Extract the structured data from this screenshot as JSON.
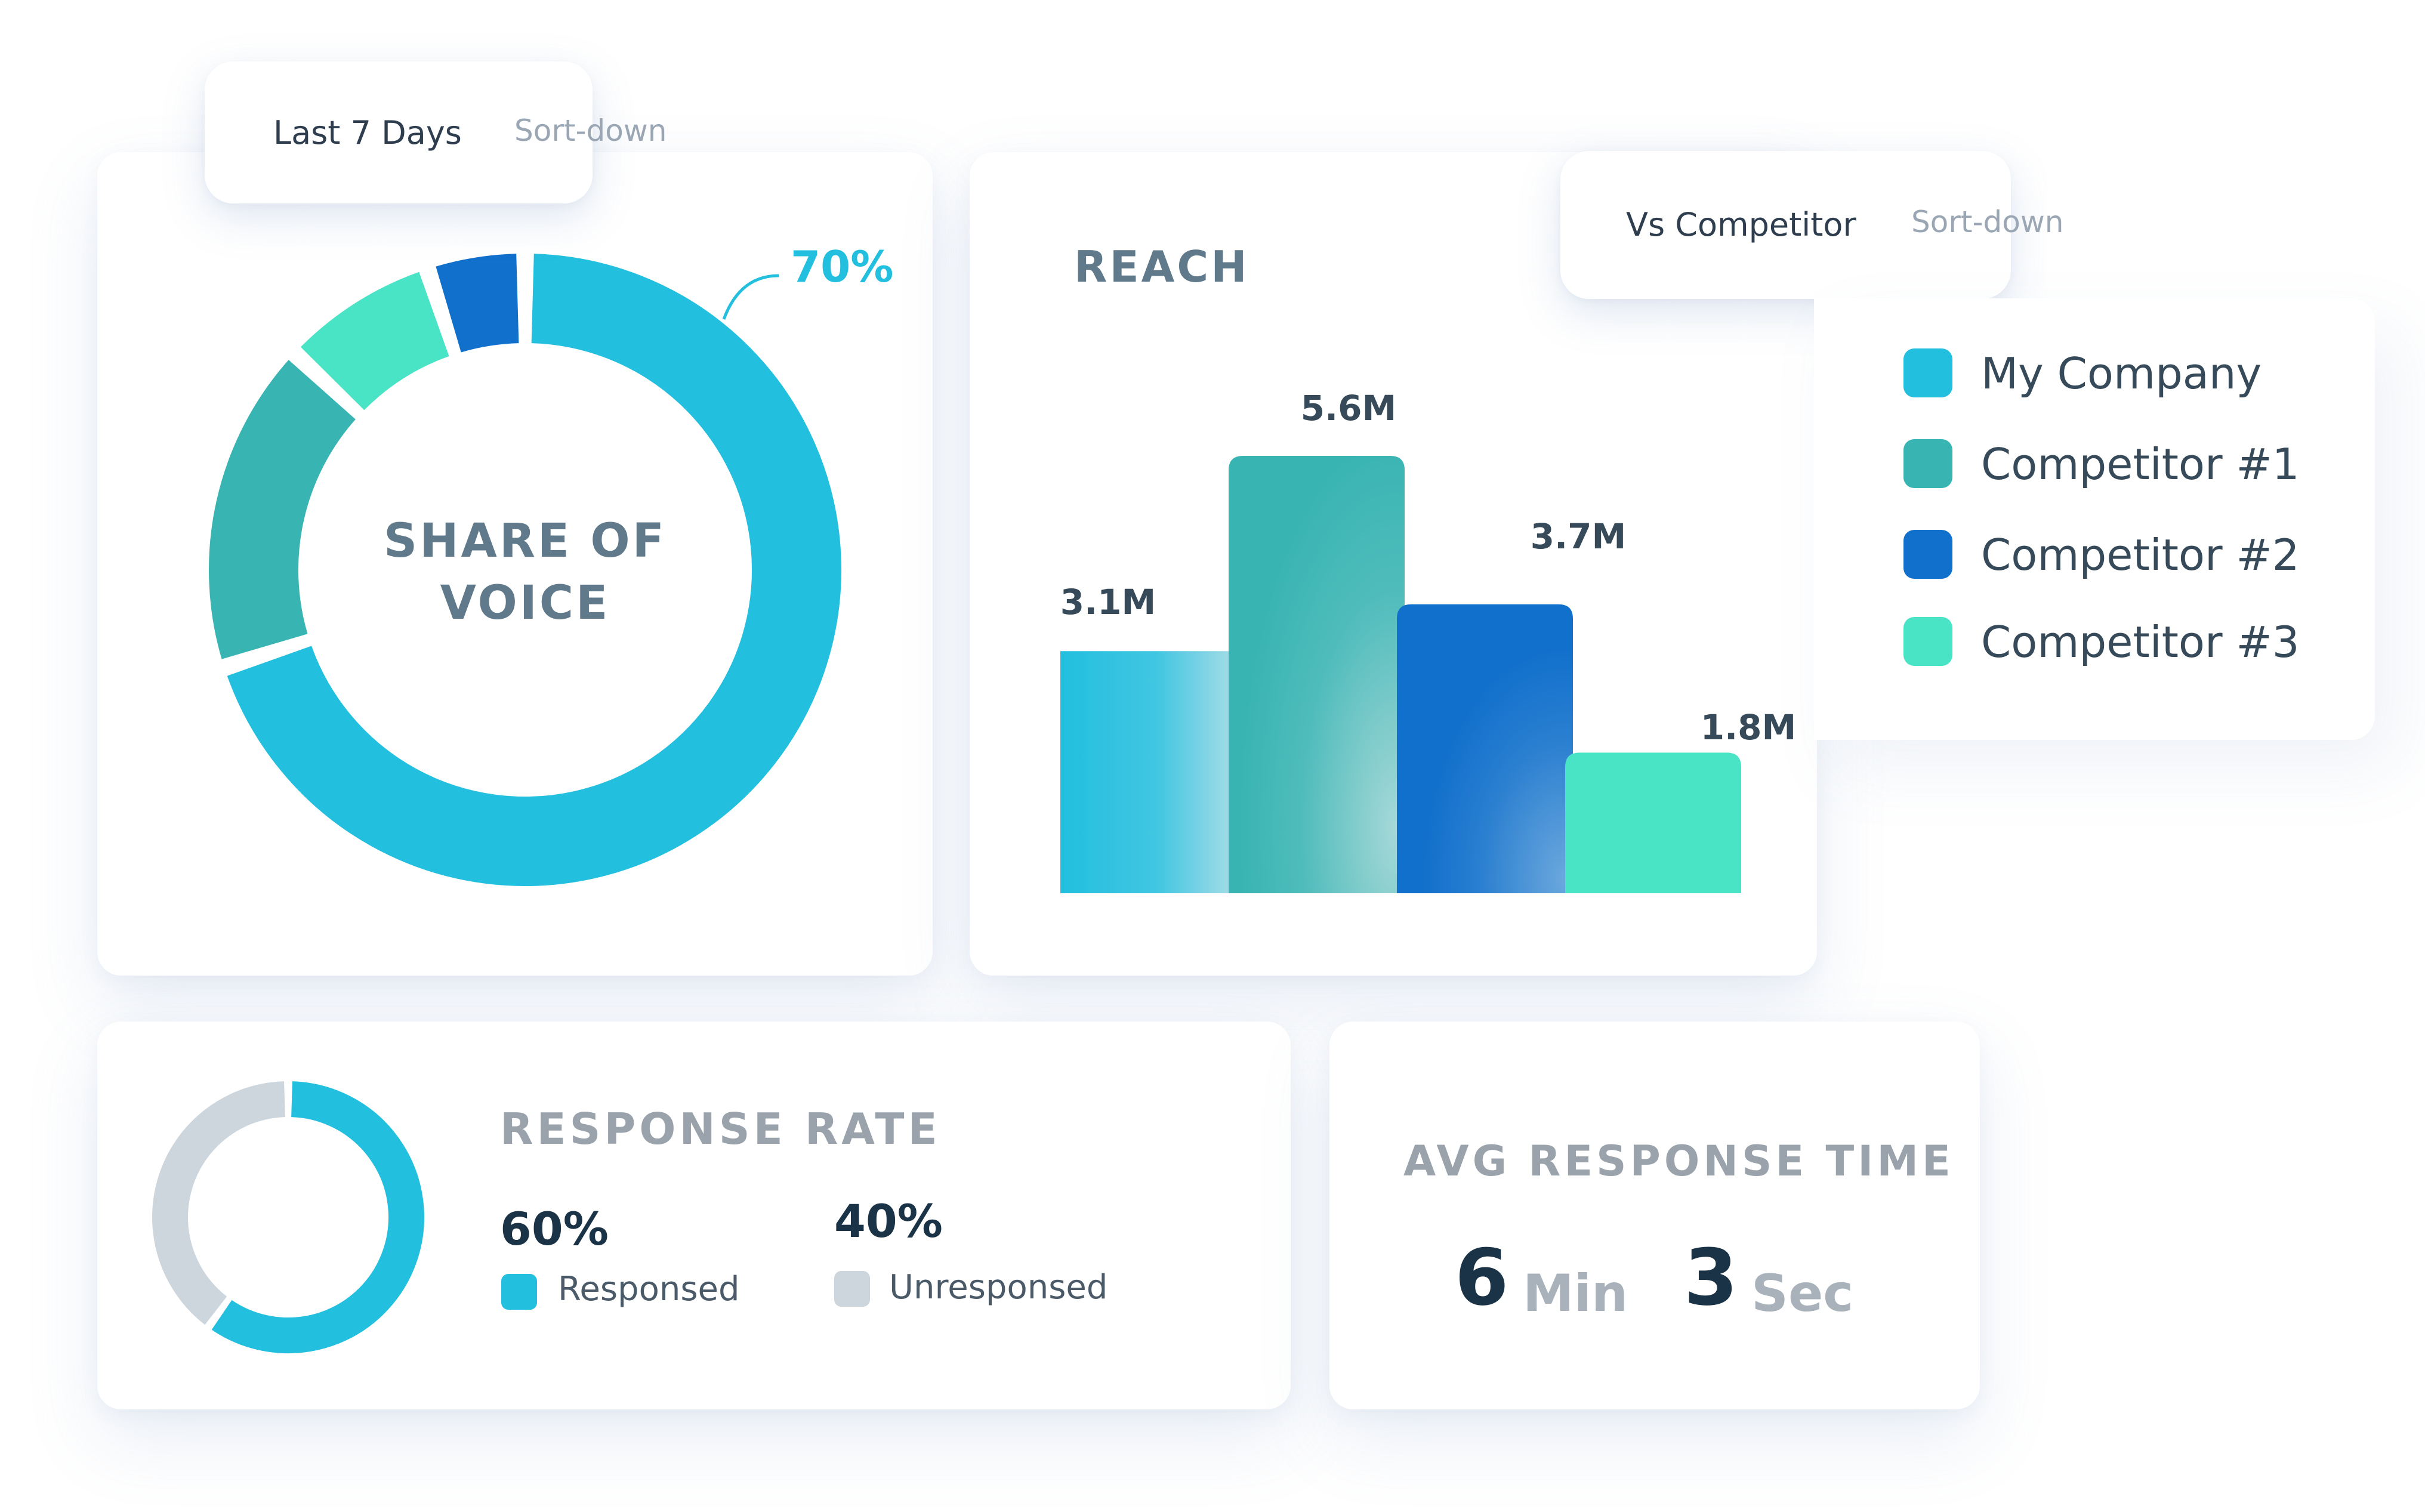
{
  "filters": {
    "period": {
      "label": "Last 7 Days",
      "caret": "Sort-down"
    },
    "comparison": {
      "label": "Vs Competitor",
      "caret": "Sort-down"
    }
  },
  "colors": {
    "my_company": "#22bfdf",
    "competitor_1": "#38b4b3",
    "competitor_2": "#1170cc",
    "competitor_3": "#49e4c5",
    "unresponded": "#cdd6dd"
  },
  "share_of_voice": {
    "title_line1": "SHARE OF",
    "title_line2": "VOICE",
    "callout": "70%"
  },
  "reach": {
    "title": "REACH"
  },
  "legend": {
    "items": [
      {
        "label": "My Company",
        "color": "#22bfdf"
      },
      {
        "label": "Competitor #1",
        "color": "#38b4b3"
      },
      {
        "label": "Competitor #2",
        "color": "#1170cc"
      },
      {
        "label": "Competitor #3",
        "color": "#49e4c5"
      }
    ]
  },
  "response_rate": {
    "title": "RESPONSE RATE",
    "responded": {
      "value": "60%",
      "label": "Responsed"
    },
    "unresponded": {
      "value": "40%",
      "label": "Unresponsed"
    }
  },
  "avg_response_time": {
    "title": "AVG RESPONSE TIME",
    "minutes": "6",
    "minutes_unit": "Min",
    "seconds": "3",
    "seconds_unit": "Sec"
  },
  "chart_data": [
    {
      "type": "pie",
      "title": "SHARE OF VOICE",
      "donut": true,
      "categories": [
        "My Company",
        "Competitor #1",
        "Competitor #3",
        "Competitor #2"
      ],
      "values": [
        70,
        17,
        8,
        5
      ],
      "colors": [
        "#22bfdf",
        "#38b4b3",
        "#49e4c5",
        "#1170cc"
      ],
      "annotations": [
        "70%"
      ]
    },
    {
      "type": "bar",
      "title": "REACH",
      "categories": [
        "My Company",
        "Competitor #1",
        "Competitor #2",
        "Competitor #3"
      ],
      "values": [
        3.1,
        5.6,
        3.7,
        1.8
      ],
      "value_labels": [
        "3.1M",
        "5.6M",
        "3.7M",
        "1.8M"
      ],
      "colors": [
        "#22bfdf",
        "#38b4b3",
        "#1170cc",
        "#49e4c5"
      ],
      "ylim": [
        0,
        5.6
      ],
      "grid": false
    },
    {
      "type": "pie",
      "title": "RESPONSE RATE",
      "donut": true,
      "categories": [
        "Responsed",
        "Unresponsed"
      ],
      "values": [
        60,
        40
      ],
      "colors": [
        "#22bfdf",
        "#cdd6dd"
      ]
    }
  ]
}
